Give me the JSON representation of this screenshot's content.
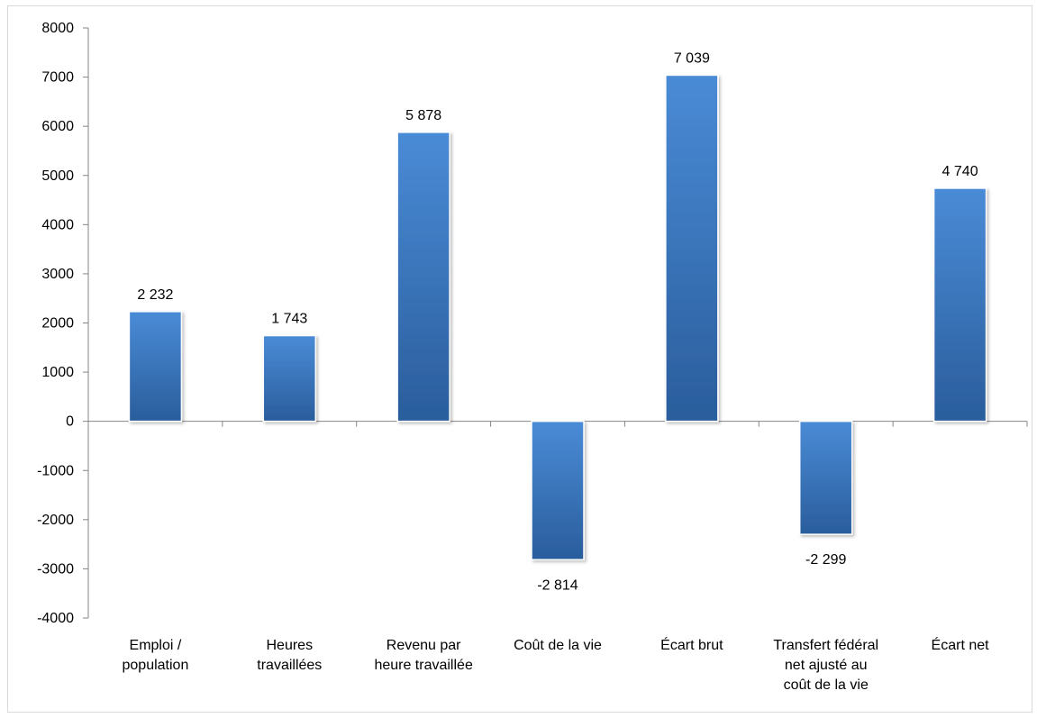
{
  "chart_data": {
    "type": "bar",
    "categories": [
      [
        "Emploi /",
        "population"
      ],
      [
        "Heures",
        "travaillées"
      ],
      [
        "Revenu par",
        "heure travaillée"
      ],
      [
        "Coût de la vie"
      ],
      [
        "Écart brut"
      ],
      [
        "Transfert fédéral",
        "net ajusté au",
        "coût de la vie"
      ],
      [
        "Écart net"
      ]
    ],
    "values": [
      2232,
      1743,
      5878,
      -2814,
      7039,
      -2299,
      4740
    ],
    "value_labels": [
      "2 232",
      "1 743",
      "5 878",
      "-2 814",
      "7 039",
      "-2 299",
      "4 740"
    ],
    "yticks": [
      8000,
      7000,
      6000,
      5000,
      4000,
      3000,
      2000,
      1000,
      0,
      -1000,
      -2000,
      -3000,
      -4000
    ],
    "ylim": [
      -4000,
      8000
    ],
    "grid": false,
    "legend": "none",
    "title": "",
    "xlabel": "",
    "ylabel": "",
    "colors": {
      "bar_top": "#4a8bd6",
      "bar_bottom": "#2a5d9c",
      "axis": "#868686"
    }
  }
}
